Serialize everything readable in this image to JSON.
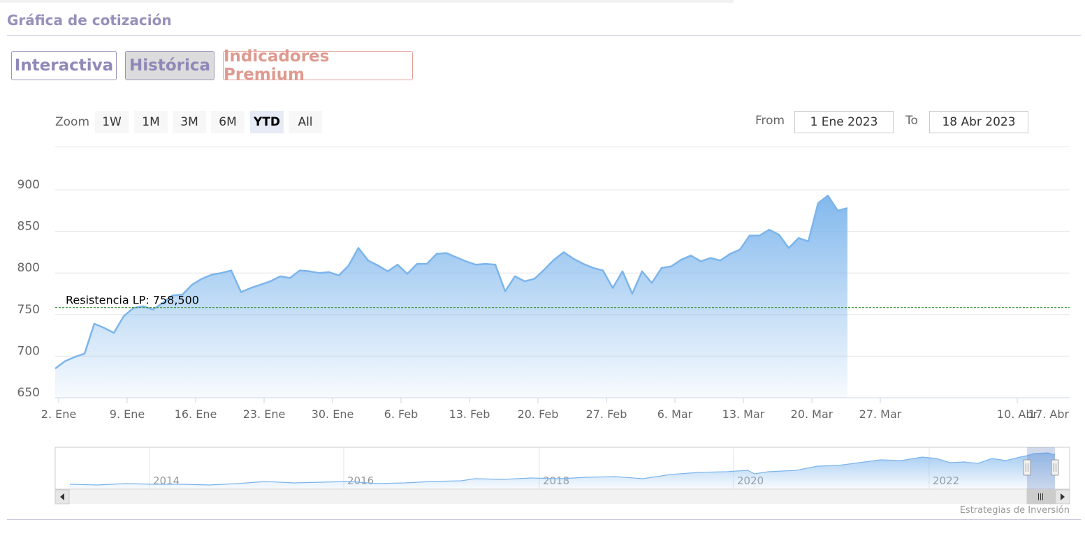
{
  "section_title": "Gráfica de cotización",
  "tabs": [
    {
      "label": "Interactiva"
    },
    {
      "label": "Histórica",
      "active": true
    },
    {
      "label": "Indicadores Premium"
    }
  ],
  "zoom": {
    "label": "Zoom",
    "buttons": [
      {
        "label": "1W"
      },
      {
        "label": "1M"
      },
      {
        "label": "3M"
      },
      {
        "label": "6M"
      },
      {
        "label": "YTD",
        "active": true
      },
      {
        "label": "All"
      }
    ]
  },
  "range": {
    "from_label": "From",
    "from_value": "1 Ene 2023",
    "to_label": "To",
    "to_value": "18 Abr 2023"
  },
  "credit": "Estrategias de Inversión",
  "colors": {
    "series_line": "#7cb5ec",
    "resistance_line": "#2e8b2e",
    "tab_purple": "#8f88b8",
    "tab_red": "#de9a8f"
  },
  "chart_data": {
    "type": "area",
    "y_ticks": [
      650,
      700,
      750,
      800,
      850,
      900
    ],
    "ylim": [
      650,
      900
    ],
    "x_ticks": [
      "2. Ene",
      "9. Ene",
      "16. Ene",
      "23. Ene",
      "30. Ene",
      "6. Feb",
      "13. Feb",
      "20. Feb",
      "27. Feb",
      "6. Mar",
      "13. Mar",
      "20. Mar",
      "27. Mar",
      "10. Abr",
      "17. Abr"
    ],
    "x_tick_days": [
      1,
      8,
      15,
      22,
      29,
      36,
      43,
      50,
      57,
      64,
      71,
      78,
      85,
      99,
      106
    ],
    "xlim": [
      1,
      108
    ],
    "resistance": {
      "label": "Resistencia LP: 758,500",
      "value": 758.5
    },
    "series": [
      {
        "points": [
          [
            1,
            685
          ],
          [
            2,
            694
          ],
          [
            3,
            699
          ],
          [
            4,
            703
          ],
          [
            5,
            739
          ],
          [
            6,
            734
          ],
          [
            7,
            728
          ],
          [
            8,
            748
          ],
          [
            9,
            758
          ],
          [
            10,
            760
          ],
          [
            11,
            756
          ],
          [
            12,
            764
          ],
          [
            13,
            773
          ],
          [
            14,
            774
          ],
          [
            15,
            786
          ],
          [
            16,
            793
          ],
          [
            17,
            798
          ],
          [
            18,
            800
          ],
          [
            19,
            803
          ],
          [
            20,
            777
          ],
          [
            21,
            782
          ],
          [
            22,
            786
          ],
          [
            23,
            790
          ],
          [
            24,
            796
          ],
          [
            25,
            794
          ],
          [
            26,
            803
          ],
          [
            27,
            802
          ],
          [
            28,
            800
          ],
          [
            29,
            801
          ],
          [
            30,
            797
          ],
          [
            31,
            809
          ],
          [
            32,
            830
          ],
          [
            33,
            815
          ],
          [
            34,
            809
          ],
          [
            35,
            802
          ],
          [
            36,
            810
          ],
          [
            37,
            799
          ],
          [
            38,
            811
          ],
          [
            39,
            811
          ],
          [
            40,
            823
          ],
          [
            41,
            824
          ],
          [
            42,
            819
          ],
          [
            43,
            814
          ],
          [
            44,
            810
          ],
          [
            45,
            811
          ],
          [
            46,
            810
          ],
          [
            47,
            778
          ],
          [
            48,
            796
          ],
          [
            49,
            790
          ],
          [
            50,
            793
          ],
          [
            51,
            804
          ],
          [
            52,
            816
          ],
          [
            53,
            825
          ],
          [
            54,
            817
          ],
          [
            55,
            811
          ],
          [
            56,
            806
          ],
          [
            57,
            803
          ],
          [
            58,
            782
          ],
          [
            59,
            802
          ],
          [
            60,
            775
          ],
          [
            61,
            802
          ],
          [
            62,
            788
          ],
          [
            63,
            806
          ],
          [
            64,
            808
          ],
          [
            65,
            816
          ],
          [
            66,
            821
          ],
          [
            67,
            814
          ],
          [
            68,
            818
          ],
          [
            69,
            815
          ],
          [
            70,
            823
          ],
          [
            71,
            828
          ],
          [
            72,
            845
          ],
          [
            73,
            845
          ],
          [
            74,
            852
          ],
          [
            75,
            846
          ],
          [
            76,
            830
          ],
          [
            77,
            842
          ],
          [
            78,
            838
          ],
          [
            79,
            884
          ],
          [
            80,
            893
          ],
          [
            81,
            875
          ],
          [
            82,
            878
          ]
        ]
      }
    ],
    "navigator": {
      "x_ticks": [
        "2014",
        "2016",
        "2018",
        "2020",
        "2022"
      ]
    }
  }
}
